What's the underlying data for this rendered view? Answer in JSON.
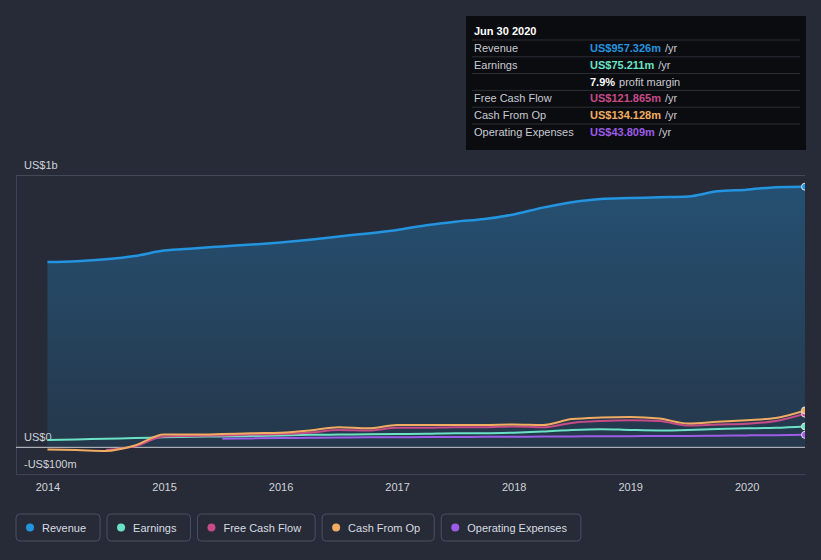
{
  "chart_data": {
    "type": "line",
    "x": [
      2014,
      2014.25,
      2014.5,
      2014.75,
      2015,
      2015.25,
      2015.5,
      2015.75,
      2016,
      2016.25,
      2016.5,
      2016.75,
      2017,
      2017.25,
      2017.5,
      2017.75,
      2018,
      2018.25,
      2018.5,
      2018.75,
      2019,
      2019.25,
      2019.5,
      2019.75,
      2020,
      2020.25,
      2020.5
    ],
    "series": [
      {
        "name": "Revenue",
        "color": "#2394df",
        "values": [
          680,
          683,
          690,
          702,
          722,
          730,
          737,
          744,
          752,
          762,
          774,
          785,
          798,
          815,
          828,
          838,
          855,
          880,
          900,
          912,
          915,
          918,
          921,
          940,
          946,
          955,
          957
        ]
      },
      {
        "name": "Earnings",
        "color": "#6be2c6",
        "values": [
          25,
          27,
          30,
          32,
          35,
          37,
          38,
          40,
          42,
          44,
          45,
          46,
          47,
          48,
          50,
          50,
          52,
          56,
          62,
          65,
          62,
          60,
          62,
          66,
          68,
          70,
          75
        ]
      },
      {
        "name": "Free Cash Flow",
        "color": "#c64b87",
        "values": [
          null,
          null,
          -12,
          2,
          38,
          40,
          42,
          45,
          47,
          52,
          62,
          60,
          70,
          70,
          72,
          72,
          75,
          72,
          88,
          95,
          98,
          95,
          78,
          82,
          85,
          95,
          122
        ]
      },
      {
        "name": "Cash From Op",
        "color": "#f1ac62",
        "values": [
          -10,
          -12,
          -15,
          5,
          45,
          45,
          47,
          50,
          52,
          60,
          72,
          68,
          80,
          80,
          80,
          80,
          82,
          80,
          102,
          108,
          110,
          104,
          86,
          92,
          98,
          106,
          134
        ]
      },
      {
        "name": "Operating Expenses",
        "color": "#9d5ce6",
        "values": [
          null,
          null,
          null,
          null,
          null,
          null,
          30,
          31,
          32,
          33,
          34,
          35,
          35,
          36,
          36,
          37,
          37,
          38,
          38,
          39,
          39,
          40,
          40,
          41,
          42,
          43,
          44
        ]
      }
    ],
    "xlim": [
      2013.73,
      2020.5
    ],
    "xticks": [
      2014,
      2015,
      2016,
      2017,
      2018,
      2019,
      2020
    ],
    "ylim": [
      -100,
      1000
    ],
    "yticks": [
      {
        "value": -100,
        "label": "-US$100m"
      },
      {
        "value": 0,
        "label": "US$0"
      },
      {
        "value": 1000,
        "label": "US$1b"
      }
    ],
    "grid": true,
    "legend": "bottom",
    "tooltip": {
      "title": "Jun 30 2020",
      "rows": [
        {
          "label": "Revenue",
          "value": "US$957.326m",
          "unit": "/yr"
        },
        {
          "label": "Earnings",
          "value": "US$75.211m",
          "unit": "/yr"
        },
        {
          "value": "7.9%",
          "unit": "profit margin"
        },
        {
          "label": "Free Cash Flow",
          "value": "US$121.865m",
          "unit": "/yr"
        },
        {
          "label": "Cash From Op",
          "value": "US$134.128m",
          "unit": "/yr"
        },
        {
          "label": "Operating Expenses",
          "value": "US$43.809m",
          "unit": "/yr"
        }
      ]
    }
  }
}
